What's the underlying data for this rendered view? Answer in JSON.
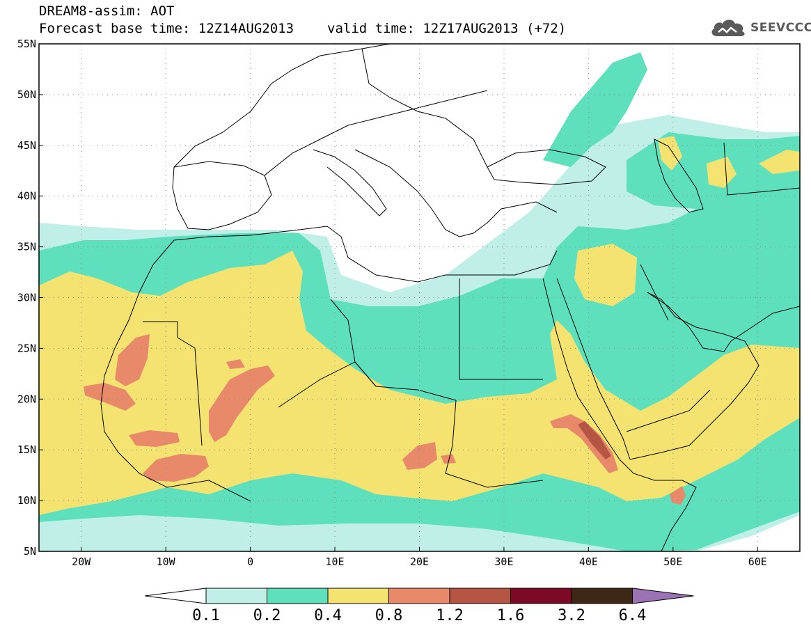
{
  "header": {
    "model_line": "DREAM8-assim: AOT",
    "base_time": "Forecast base time: 12Z14AUG2013",
    "valid_time": "valid time: 12Z17AUG2013 (+72)"
  },
  "logo": {
    "text": "SEEVCCC",
    "icon": "cloud-icon",
    "color": "#5a5a5a"
  },
  "map": {
    "lon_range": [
      -25,
      65
    ],
    "lat_range": [
      5,
      55
    ],
    "grid": "dotted",
    "lon_ticks": [
      {
        "value": -20,
        "label": "20W"
      },
      {
        "value": -10,
        "label": "10W"
      },
      {
        "value": 0,
        "label": "0"
      },
      {
        "value": 10,
        "label": "10E"
      },
      {
        "value": 20,
        "label": "20E"
      },
      {
        "value": 30,
        "label": "30E"
      },
      {
        "value": 40,
        "label": "40E"
      },
      {
        "value": 50,
        "label": "50E"
      },
      {
        "value": 60,
        "label": "60E"
      }
    ],
    "lat_ticks": [
      {
        "value": 55,
        "label": "55N"
      },
      {
        "value": 50,
        "label": "50N"
      },
      {
        "value": 45,
        "label": "45N"
      },
      {
        "value": 40,
        "label": "40N"
      },
      {
        "value": 35,
        "label": "35N"
      },
      {
        "value": 30,
        "label": "30N"
      },
      {
        "value": 25,
        "label": "25N"
      },
      {
        "value": 20,
        "label": "20N"
      },
      {
        "value": 15,
        "label": "15N"
      },
      {
        "value": 10,
        "label": "10N"
      },
      {
        "value": 5,
        "label": "5N"
      }
    ]
  },
  "colorbar": {
    "levels": [
      "0.1",
      "0.2",
      "0.4",
      "0.8",
      "1.2",
      "1.6",
      "3.2",
      "6.4"
    ],
    "colors": [
      "#ffffff",
      "#c0efe8",
      "#5fe0bc",
      "#f5e371",
      "#e8896a",
      "#b65544",
      "#7c0a27",
      "#3d2816",
      "#9b73b5"
    ]
  },
  "colors": {
    "very_light": "#c0efe8",
    "light": "#5fe0bc",
    "medium": "#f5e371",
    "high": "#e8896a",
    "very_high": "#b65544"
  }
}
